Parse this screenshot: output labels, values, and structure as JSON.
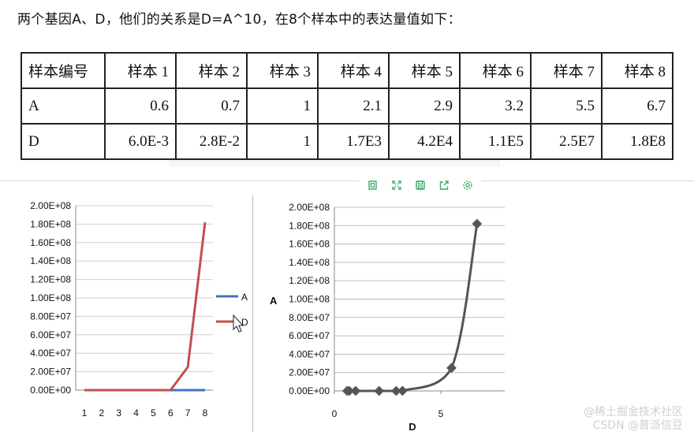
{
  "headline": "两个基因A、D，他们的关系是D=A^10，在8个样本中的表达量值如下：",
  "table": {
    "header": [
      "样本编号",
      "样本 1",
      "样本 2",
      "样本 3",
      "样本 4",
      "样本 5",
      "样本 6",
      "样本 7",
      "样本 8"
    ],
    "rows": [
      [
        "A",
        "0.6",
        "0.7",
        "1",
        "2.1",
        "2.9",
        "3.2",
        "5.5",
        "6.7"
      ],
      [
        "D",
        "6.0E-3",
        "2.8E-2",
        "1",
        "1.7E3",
        "4.2E4",
        "1.1E5",
        "2.5E7",
        "1.8E8"
      ]
    ]
  },
  "toolbar": {
    "icons": [
      "copy-icon",
      "fullscreen-icon",
      "save-icon",
      "share-icon",
      "settings-icon"
    ],
    "color": "#3aa866"
  },
  "watermark": {
    "line1": "@稀土掘金技术社区",
    "line2": "CSDN @普派信豆"
  },
  "chart_data": [
    {
      "type": "line",
      "categories": [
        1,
        2,
        3,
        4,
        5,
        6,
        7,
        8
      ],
      "ylim": [
        0,
        200000000
      ],
      "yticks": [
        "0.00E+00",
        "2.00E+07",
        "4.00E+07",
        "6.00E+07",
        "8.00E+07",
        "1.00E+08",
        "1.20E+08",
        "1.40E+08",
        "1.60E+08",
        "1.80E+08",
        "2.00E+08"
      ],
      "grid": true,
      "legend": "right",
      "series": [
        {
          "name": "A",
          "color": "#4472c4",
          "values": [
            0.6,
            0.7,
            1,
            2.1,
            2.9,
            3.2,
            5.5,
            6.7
          ]
        },
        {
          "name": "D",
          "color": "#c0504d",
          "values": [
            0.006,
            0.028,
            1,
            1700,
            42000,
            110000,
            25000000,
            182000000
          ]
        }
      ]
    },
    {
      "type": "scatter",
      "xlabel": "D",
      "ylabel": "A",
      "xlim": [
        0,
        8
      ],
      "ylim": [
        0,
        200000000
      ],
      "xticks": [
        0,
        5
      ],
      "yticks": [
        "0.00E+00",
        "2.00E+07",
        "4.00E+07",
        "6.00E+07",
        "8.00E+07",
        "1.00E+08",
        "1.20E+08",
        "1.40E+08",
        "1.60E+08",
        "1.80E+08",
        "2.00E+08"
      ],
      "grid": true,
      "color": "#555555",
      "points": [
        {
          "x": 0.6,
          "y": 0.006
        },
        {
          "x": 0.7,
          "y": 0.028
        },
        {
          "x": 1,
          "y": 1
        },
        {
          "x": 2.1,
          "y": 1700
        },
        {
          "x": 2.9,
          "y": 42000
        },
        {
          "x": 3.2,
          "y": 110000
        },
        {
          "x": 5.5,
          "y": 25000000
        },
        {
          "x": 6.7,
          "y": 182000000
        }
      ]
    }
  ]
}
